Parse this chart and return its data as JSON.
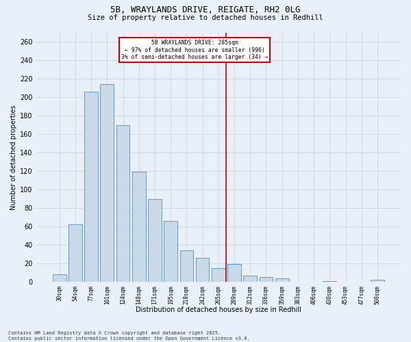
{
  "title_line1": "5B, WRAYLANDS DRIVE, REIGATE, RH2 0LG",
  "title_line2": "Size of property relative to detached houses in Redhill",
  "xlabel": "Distribution of detached houses by size in Redhill",
  "ylabel": "Number of detached properties",
  "bar_labels": [
    "30sqm",
    "54sqm",
    "77sqm",
    "101sqm",
    "124sqm",
    "148sqm",
    "171sqm",
    "195sqm",
    "218sqm",
    "242sqm",
    "265sqm",
    "289sqm",
    "312sqm",
    "336sqm",
    "359sqm",
    "383sqm",
    "406sqm",
    "430sqm",
    "453sqm",
    "477sqm",
    "500sqm"
  ],
  "bar_values": [
    8,
    62,
    206,
    214,
    170,
    119,
    90,
    66,
    34,
    26,
    15,
    19,
    7,
    5,
    4,
    0,
    0,
    1,
    0,
    0,
    2
  ],
  "bar_color": "#c9d9e8",
  "bar_edge_color": "#5b9bd5",
  "annotation_line1": "5B WRAYLANDS DRIVE: 285sqm",
  "annotation_line2": "← 97% of detached houses are smaller (996)",
  "annotation_line3": "3% of semi-detached houses are larger (34) →",
  "annotation_box_color": "#ffffff",
  "annotation_box_edge_color": "#cc0000",
  "vline_color": "#cc0000",
  "vline_x": 11.5,
  "ylim": [
    0,
    270
  ],
  "yticks": [
    0,
    20,
    40,
    60,
    80,
    100,
    120,
    140,
    160,
    180,
    200,
    220,
    240,
    260
  ],
  "grid_color": "#d0d8e4",
  "background_color": "#eaf0f8",
  "footer_line1": "Contains HM Land Registry data © Crown copyright and database right 2025.",
  "footer_line2": "Contains public sector information licensed under the Open Government Licence v3.0."
}
